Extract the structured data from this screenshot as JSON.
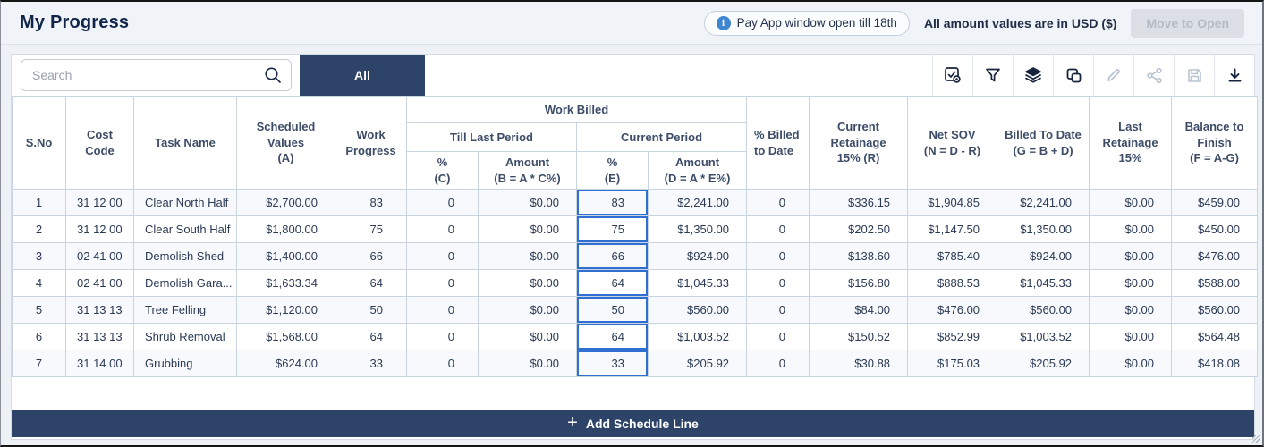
{
  "header": {
    "title": "My Progress",
    "pay_app_notice": "Pay App window open till 18th",
    "info_icon_glyph": "i",
    "currency_note": "All amount values are in USD ($)",
    "move_to_open_label": "Move to Open"
  },
  "toolbar": {
    "search_placeholder": "Search",
    "tab_all_label": "All",
    "icons": [
      {
        "name": "pay-app-review-icon",
        "enabled": true
      },
      {
        "name": "filter-icon",
        "enabled": true
      },
      {
        "name": "layers-icon",
        "enabled": true
      },
      {
        "name": "copy-icon",
        "enabled": true
      },
      {
        "name": "edit-icon",
        "enabled": false
      },
      {
        "name": "share-icon",
        "enabled": false
      },
      {
        "name": "save-icon",
        "enabled": false
      },
      {
        "name": "download-icon",
        "enabled": true
      }
    ]
  },
  "table": {
    "headers": {
      "sno": "S.No",
      "cost_code": [
        "Cost",
        "Code"
      ],
      "task_name": "Task Name",
      "scheduled_values": [
        "Scheduled Values",
        "(A)"
      ],
      "work_progress": [
        "Work",
        "Progress"
      ],
      "work_billed_group": "Work Billed",
      "till_last_period": "Till Last Period",
      "current_period": "Current Period",
      "pct_c": [
        "%",
        "(C)"
      ],
      "amount_b": [
        "Amount",
        "(B = A * C%)"
      ],
      "pct_e": [
        "%",
        "(E)"
      ],
      "amount_d": [
        "Amount",
        "(D = A * E%)"
      ],
      "pct_billed_to_date": "% Billed to Date",
      "current_retainage": [
        "Current Retainage",
        "15% (R)"
      ],
      "net_sov": [
        "Net SOV",
        "(N = D - R)"
      ],
      "billed_to_date": [
        "Billed To Date",
        "(G = B + D)"
      ],
      "last_retainage": [
        "Last Retainage",
        "15%"
      ],
      "balance_to_finish": [
        "Balance to Finish",
        "(F = A-G)"
      ]
    },
    "rows": [
      [
        "1",
        "31 12 00",
        "Clear North Half",
        "$2,700.00",
        "83",
        "0",
        "$0.00",
        "83",
        "$2,241.00",
        "0",
        "$336.15",
        "$1,904.85",
        "$2,241.00",
        "$0.00",
        "$459.00"
      ],
      [
        "2",
        "31 12 00",
        "Clear South Half",
        "$1,800.00",
        "75",
        "0",
        "$0.00",
        "75",
        "$1,350.00",
        "0",
        "$202.50",
        "$1,147.50",
        "$1,350.00",
        "$0.00",
        "$450.00"
      ],
      [
        "3",
        "02 41 00",
        "Demolish Shed",
        "$1,400.00",
        "66",
        "0",
        "$0.00",
        "66",
        "$924.00",
        "0",
        "$138.60",
        "$785.40",
        "$924.00",
        "$0.00",
        "$476.00"
      ],
      [
        "4",
        "02 41 00",
        "Demolish Gara...",
        "$1,633.34",
        "64",
        "0",
        "$0.00",
        "64",
        "$1,045.33",
        "0",
        "$156.80",
        "$888.53",
        "$1,045.33",
        "$0.00",
        "$588.00"
      ],
      [
        "5",
        "31 13 13",
        "Tree Felling",
        "$1,120.00",
        "50",
        "0",
        "$0.00",
        "50",
        "$560.00",
        "0",
        "$84.00",
        "$476.00",
        "$560.00",
        "$0.00",
        "$560.00"
      ],
      [
        "6",
        "31 13 13",
        "Shrub Removal",
        "$1,568.00",
        "64",
        "0",
        "$0.00",
        "64",
        "$1,003.52",
        "0",
        "$150.52",
        "$852.99",
        "$1,003.52",
        "$0.00",
        "$564.48"
      ],
      [
        "7",
        "31 14 00",
        "Grubbing",
        "$624.00",
        "33",
        "0",
        "$0.00",
        "33",
        "$205.92",
        "0",
        "$30.88",
        "$175.03",
        "$205.92",
        "$0.00",
        "$418.08"
      ]
    ]
  },
  "footer": {
    "add_schedule_line_label": "Add Schedule Line",
    "plus_glyph": "+"
  },
  "colors": {
    "navy": "#2d4368",
    "edit_cell_border": "#2f6fd2",
    "info_icon_blue": "#3f86d2",
    "table_border": "#c9d4e1"
  }
}
